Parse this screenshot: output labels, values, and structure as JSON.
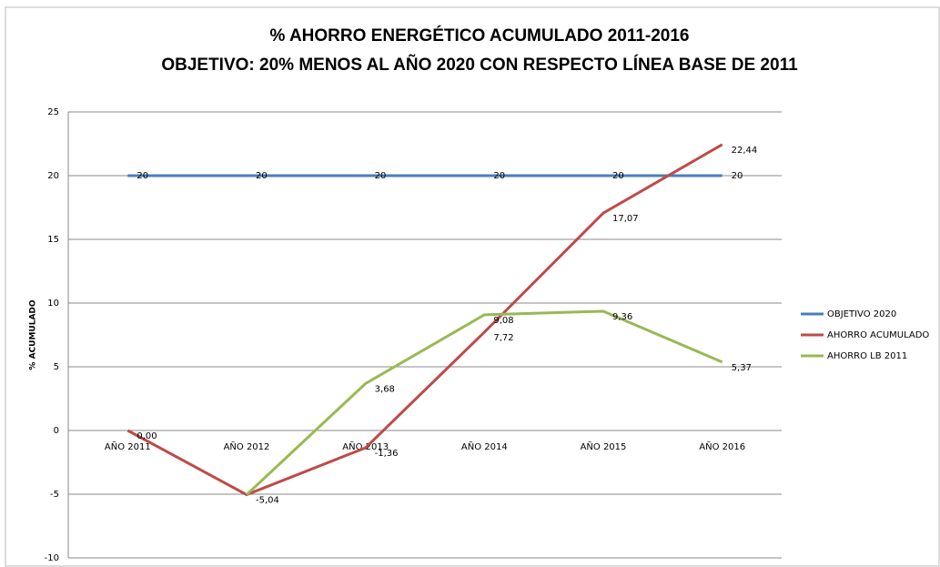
{
  "chart_data": {
    "type": "line",
    "title": "% AHORRO ENERGÉTICO ACUMULADO 2011-2016",
    "subtitle": "OBJETIVO: 20% MENOS AL AÑO 2020 CON RESPECTO LÍNEA BASE DE 2011",
    "y_label": "% ACUMULADO",
    "categories": [
      "AÑO 2011",
      "AÑO 2012",
      "AÑO 2013",
      "AÑO 2014",
      "AÑO 2015",
      "AÑO 2016"
    ],
    "series": [
      {
        "name": "OBJETIVO 2020",
        "color": "#4a7ebb",
        "values": [
          20,
          20,
          20,
          20,
          20,
          20
        ]
      },
      {
        "name": "AHORRO ACUMULADO",
        "color": "#be4b48",
        "values": [
          0,
          -5.04,
          -1.36,
          7.72,
          17.07,
          22.44
        ],
        "value_labels": [
          "0,00",
          "-5,04",
          "-1,36",
          "7,72",
          "17,07",
          "22,44"
        ]
      },
      {
        "name": "AHORRO LB 2011",
        "color": "#98b954",
        "values": [
          null,
          -5.04,
          3.68,
          9.08,
          9.36,
          5.37
        ],
        "value_labels": [
          null,
          null,
          "3,68",
          "9,08",
          "9,36",
          "5,37"
        ]
      }
    ],
    "ylim": [
      -10,
      25
    ],
    "yticks": [
      -10,
      -5,
      0,
      5,
      10,
      15,
      20,
      25
    ],
    "grid": true,
    "legend": "right"
  }
}
